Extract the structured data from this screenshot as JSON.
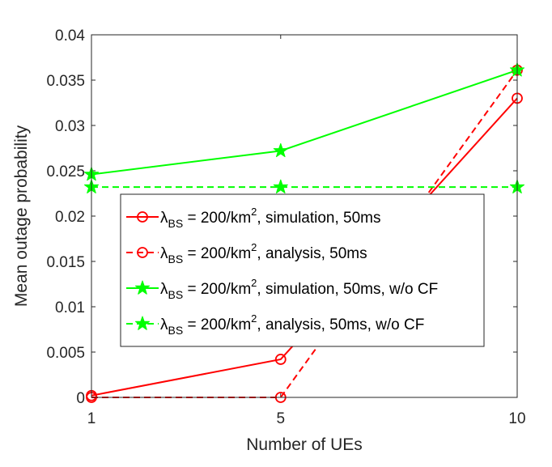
{
  "chart_data": {
    "type": "line",
    "xlabel": "Number of UEs",
    "ylabel": "Mean outage probability",
    "x": [
      1,
      5,
      10
    ],
    "x_ticks": [
      "1",
      "5",
      "10"
    ],
    "ylim": [
      0,
      0.04
    ],
    "y_ticks": [
      "0",
      "0.005",
      "0.01",
      "0.015",
      "0.02",
      "0.025",
      "0.03",
      "0.035",
      "0.04"
    ],
    "grid": false,
    "legend_position": "center",
    "series": [
      {
        "name": "λBS = 200/km2, simulation, 50ms",
        "legend_parts": {
          "symbol": "λ",
          "sub": "BS",
          "pre_sup": " = 200/km",
          "sup": "2",
          "rest": ", simulation, 50ms"
        },
        "color": "#ff0000",
        "dash": "solid",
        "marker": "circle",
        "values": [
          0.0002,
          0.0042,
          0.033
        ]
      },
      {
        "name": "λBS = 200/km2, analysis, 50ms",
        "legend_parts": {
          "symbol": "λ",
          "sub": "BS",
          "pre_sup": " = 200/km",
          "sup": "2",
          "rest": ", analysis, 50ms"
        },
        "color": "#ff0000",
        "dash": "dashed",
        "marker": "circle",
        "values": [
          0.0,
          0.0,
          0.0361
        ]
      },
      {
        "name": "λBS = 200/km2, simulation, 50ms, w/o CF",
        "legend_parts": {
          "symbol": "λ",
          "sub": "BS",
          "pre_sup": " = 200/km",
          "sup": "2",
          "rest": ", simulation, 50ms, w/o CF"
        },
        "color": "#00ff00",
        "dash": "solid",
        "marker": "star",
        "values": [
          0.0246,
          0.0272,
          0.0361
        ]
      },
      {
        "name": "λBS = 200/km2, analysis, 50ms, w/o CF",
        "legend_parts": {
          "symbol": "λ",
          "sub": "BS",
          "pre_sup": " = 200/km",
          "sup": "2",
          "rest": ", analysis, 50ms, w/o CF"
        },
        "color": "#00ff00",
        "dash": "dashed",
        "marker": "star",
        "values": [
          0.0232,
          0.0232,
          0.0232
        ]
      }
    ]
  }
}
